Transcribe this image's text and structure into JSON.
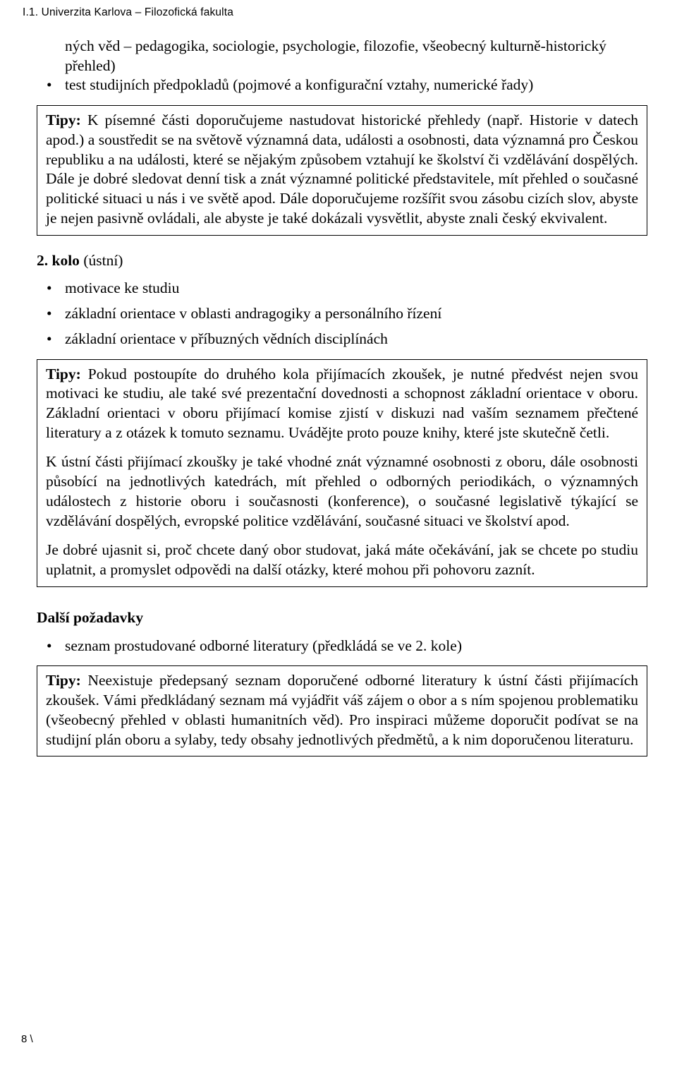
{
  "running_head": "I.1. Univerzita Karlova – Filozofická fakulta",
  "intro_continuation": "ných věd – pedagogika, sociologie, psychologie, filozofie, všeobecný kulturně-historický přehled)",
  "intro_bullet_2": "test studijních předpokladů (pojmové a konfigurační vztahy, numerické řady)",
  "tipbox1_label": "Tipy:",
  "tipbox1_text": " K písemné části doporučujeme nastudovat historické přehledy (např. Historie v datech apod.) a soustředit se na světově významná data, události a osobnosti, data významná pro Českou republiku a na události, které se nějakým způsobem vztahují ke školství či vzdělávání dospělých. Dále je dobré sledovat denní tisk a znát významné politické představitele, mít přehled o současné politické situaci u nás i ve světě apod. Dále doporučujeme rozšířit svou zásobu cizích slov, abyste je nejen pasivně ovládali, ale abyste je také dokázali vysvětlit, abyste znali český ekvivalent.",
  "round2_bold": "2. kolo",
  "round2_rest": " (ústní)",
  "round2_bullets": [
    "motivace ke studiu",
    "základní orientace v oblasti andragogiky a personálního řízení",
    "základní orientace v příbuzných vědních disciplínách"
  ],
  "tipbox2_label": "Tipy:",
  "tipbox2_p1": " Pokud postoupíte do druhého kola přijímacích zkoušek, je nutné předvést nejen svou motivaci ke studiu, ale také své prezentační dovednosti a schopnost základní orientace v oboru. Základní orientaci v oboru přijímací komise zjistí v diskuzi nad vaším seznamem přečtené literatury a z otázek k tomuto seznamu. Uvádějte proto pouze knihy, které jste skutečně četli.",
  "tipbox2_p2": "K ústní části přijímací zkoušky je také vhodné znát významné osobnosti z oboru, dále osobnosti působící na jednotlivých katedrách, mít přehled o odborných periodikách, o významných událostech z historie oboru i současnosti (konference), o současné legislativě týkající se vzdělávání dospělých, evropské politice vzdělávání, současné situaci ve školství apod.",
  "tipbox2_p3": "Je dobré ujasnit si, proč chcete daný obor studovat, jaká máte očekávání, jak se chcete po studiu uplatnit, a promyslet odpovědi na další otázky, které mohou při pohovoru zaznít.",
  "further_heading": "Další požadavky",
  "further_bullet": "seznam prostudované odborné literatury (předkládá se ve 2. kole)",
  "tipbox3_label": "Tipy:",
  "tipbox3_text": " Neexistuje předepsaný seznam doporučené odborné literatury k ústní části přijímacích zkoušek. Vámi předkládaný seznam má vyjádřit váš zájem o obor a s ním spojenou problematiku (všeobecný přehled v oblasti humanitních věd). Pro inspiraci můžeme doporučit podívat se na studijní plán oboru a sylaby, tedy obsahy jednotlivých předmětů, a k nim doporučenou literaturu.",
  "page_number": "8 \\"
}
